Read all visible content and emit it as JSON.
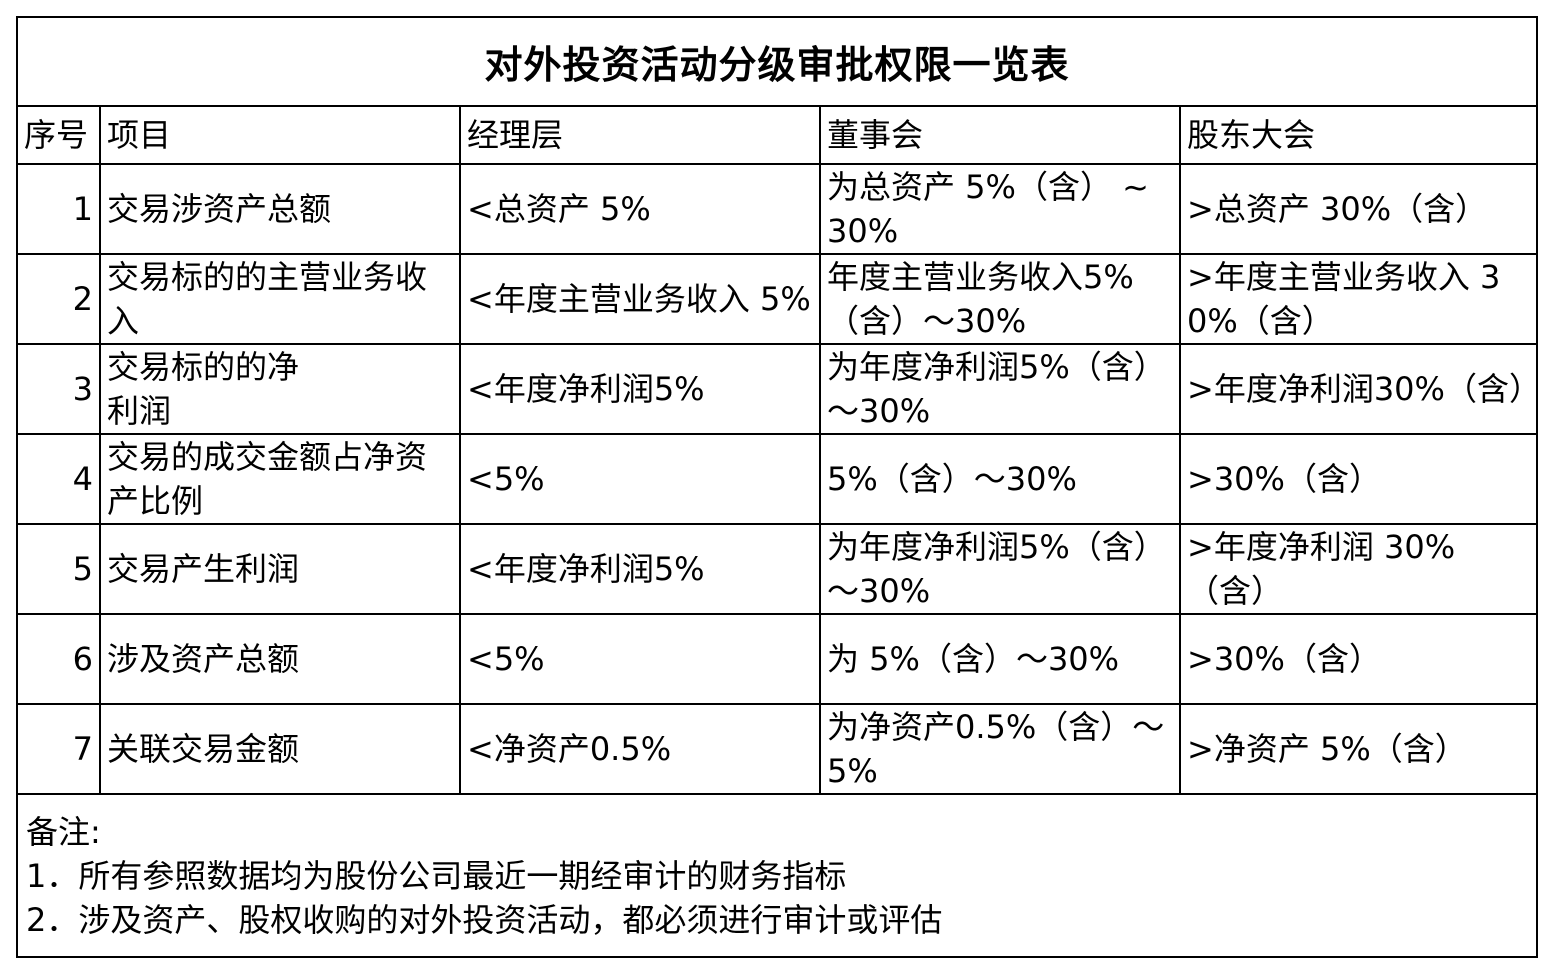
{
  "title": "对外投资活动分级审批权限一览表",
  "headers": {
    "seq": "序号",
    "item": "项目",
    "manager": "经理层",
    "board": "董事会",
    "shareholders": "股东大会"
  },
  "rows": [
    {
      "seq": "1",
      "item": "交易涉资产总额",
      "manager": "<总资产 5%",
      "board": "为总资产 5%（含） ~ 30%",
      "shareholders": ">总资产 30%（含）"
    },
    {
      "seq": "2",
      "item": "交易标的的主营业务收入",
      "manager": "<年度主营业务收入 5%",
      "board": "年度主营业务收入5%（含）～30%",
      "shareholders": ">年度主营业务收入 30%（含）"
    },
    {
      "seq": "3",
      "item": "交易标的的净\n利润",
      "manager": "<年度净利润5%",
      "board": "为年度净利润5%（含）～30%",
      "shareholders": ">年度净利润30%（含）"
    },
    {
      "seq": "4",
      "item": "交易的成交金额占净资产比例",
      "manager": "<5%",
      "board": "5%（含）～30%",
      "shareholders": ">30%（含）"
    },
    {
      "seq": "5",
      "item": "交易产生利润",
      "manager": "<年度净利润5%",
      "board": "为年度净利润5%（含）～30%",
      "shareholders": ">年度净利润 30%（含）"
    },
    {
      "seq": "6",
      "item": "涉及资产总额",
      "manager": "<5%",
      "board": "为 5%（含）～30%",
      "shareholders": ">30%（含）"
    },
    {
      "seq": "7",
      "item": "关联交易金额",
      "manager": "<净资产0.5%",
      "board": "为净资产0.5%（含）～5%",
      "shareholders": ">净资产 5%（含）"
    }
  ],
  "notes": {
    "label": "备注:",
    "items": [
      "1．所有参照数据均为股份公司最近一期经审计的财务指标",
      "2．涉及资产、股权收购的对外投资活动，都必须进行审计或评估"
    ]
  }
}
